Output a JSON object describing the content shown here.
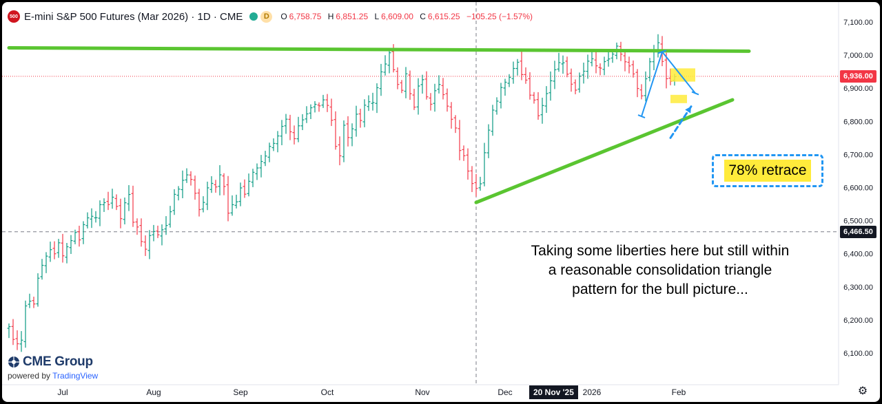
{
  "header": {
    "badge": "500",
    "symbol_title": "E-mini S&P 500 Futures (Mar 2026) · 1D · CME",
    "delay_badge": "D",
    "ohlc": [
      {
        "key": "O",
        "value": "6,758.75"
      },
      {
        "key": "H",
        "value": "6,851.25"
      },
      {
        "key": "L",
        "value": "6,609.00"
      },
      {
        "key": "C",
        "value": "6,615.25"
      },
      {
        "key": "",
        "value": "−105.25 (−1.57%)"
      }
    ]
  },
  "branding": {
    "name": "CME Group",
    "powered_prefix": "powered by",
    "powered_brand": "TradingView"
  },
  "annotations": {
    "note_lines": [
      "Taking some liberties here but still within",
      "a reasonable consolidation triangle",
      "pattern for the bull picture..."
    ],
    "retrace_label": "78% retrace"
  },
  "price_tags": {
    "last": {
      "value": 6936,
      "label": "6,936.00"
    },
    "crosshair": {
      "value": 6466.5,
      "label": "6,466.50"
    }
  },
  "crosshair_date": "20 Nov '25",
  "colors": {
    "up": "#089981",
    "down": "#f23645",
    "trend_line": "#5ac531",
    "measure": "#2196f3",
    "highlight": "#ffeb3b"
  },
  "icons": {
    "settings": "gear-icon"
  },
  "chart_data": {
    "type": "ohlc",
    "title": "E-mini S&P 500 Futures (Mar 2026) · 1D · CME",
    "ylim": [
      6050,
      7150
    ],
    "y_ticks": [
      6100,
      6200,
      6300,
      6400,
      6500,
      6600,
      6700,
      6800,
      6900,
      7000,
      7100
    ],
    "y_tick_labels": [
      "6,100.00",
      "6,200.00",
      "6,300.00",
      "6,400.00",
      "6,500.00",
      "6,600.00",
      "6,700.00",
      "6,800.00",
      "6,900.00",
      "7,000.00",
      "7,100.00"
    ],
    "x_months": [
      {
        "label": "Jul",
        "index": 13
      },
      {
        "label": "Aug",
        "index": 35
      },
      {
        "label": "Sep",
        "index": 56
      },
      {
        "label": "Oct",
        "index": 77
      },
      {
        "label": "Nov",
        "index": 100
      },
      {
        "label": "Dec",
        "index": 120
      },
      {
        "label": "2026",
        "index": 141
      },
      {
        "label": "Feb",
        "index": 162
      }
    ],
    "crosshair_index": 113,
    "grid": false,
    "segments": [
      {
        "start": 0,
        "end": 3,
        "points": [
          6180,
          6140,
          6135,
          6140
        ]
      },
      {
        "start": 3,
        "end": 4,
        "points": [
          6140,
          6175
        ]
      },
      {
        "start": 4,
        "end": 6,
        "points": [
          6250,
          6250
        ]
      },
      {
        "start": 6,
        "end": 12,
        "points": [
          6250,
          6330,
          6360,
          6390,
          6420,
          6400,
          6430
        ]
      },
      {
        "start": 12,
        "end": 29,
        "points": [
          6430,
          6400,
          6420,
          6440,
          6470,
          6450,
          6480,
          6500,
          6520,
          6510,
          6540,
          6560,
          6550,
          6570,
          6540,
          6510,
          6560,
          6580
        ]
      },
      {
        "start": 29,
        "end": 38,
        "points": [
          6580,
          6500,
          6480,
          6440,
          6420,
          6450,
          6470,
          6460,
          6480,
          6490
        ]
      },
      {
        "start": 38,
        "end": 62,
        "points": [
          6490,
          6520,
          6580,
          6600,
          6620,
          6640,
          6620,
          6580,
          6540,
          6560,
          6600,
          6620,
          6610,
          6640,
          6600,
          6520,
          6540,
          6560,
          6600,
          6580,
          6620,
          6640,
          6660,
          6680,
          6700
        ]
      },
      {
        "start": 62,
        "end": 76,
        "points": [
          6700,
          6720,
          6740,
          6760,
          6780,
          6800,
          6760,
          6740,
          6780,
          6800,
          6820,
          6840,
          6860,
          6850,
          6870
        ]
      },
      {
        "start": 76,
        "end": 85,
        "points": [
          6870,
          6850,
          6800,
          6720,
          6700,
          6780,
          6760,
          6780,
          6820,
          6810
        ]
      },
      {
        "start": 85,
        "end": 92,
        "points": [
          6810,
          6840,
          6860,
          6850,
          6900,
          6950,
          6980,
          7000
        ]
      },
      {
        "start": 92,
        "end": 100,
        "points": [
          7000,
          6960,
          6920,
          6900,
          6940,
          6880,
          6840,
          6900,
          6920
        ]
      },
      {
        "start": 100,
        "end": 108,
        "points": [
          6920,
          6880,
          6860,
          6900,
          6920,
          6880,
          6840,
          6800,
          6780
        ]
      },
      {
        "start": 108,
        "end": 114,
        "points": [
          6780,
          6720,
          6700,
          6650,
          6620,
          6600,
          6615
        ]
      },
      {
        "start": 114,
        "end": 120,
        "points": [
          6615,
          6700,
          6780,
          6840,
          6870,
          6900,
          6920
        ]
      },
      {
        "start": 120,
        "end": 134,
        "points": [
          6920,
          6940,
          6960,
          6980,
          6950,
          6920,
          6880,
          6860,
          6820,
          6840,
          6880,
          6920,
          6960,
          6980,
          6970
        ]
      },
      {
        "start": 134,
        "end": 144,
        "points": [
          6970,
          6950,
          6920,
          6900,
          6940,
          6960,
          6980,
          6990,
          6970,
          6960,
          6980
        ]
      },
      {
        "start": 144,
        "end": 153,
        "points": [
          6980,
          6990,
          7010,
          7020,
          7000,
          6980,
          6960,
          6940,
          6900,
          6870
        ]
      },
      {
        "start": 153,
        "end": 157,
        "points": [
          6870,
          6930,
          6980,
          7010,
          7030
        ]
      },
      {
        "start": 157,
        "end": 160,
        "points": [
          7030,
          6980,
          6920,
          6915
        ]
      },
      {
        "start": 160,
        "end": 161,
        "points": [
          6915,
          6936
        ]
      }
    ],
    "overlays": {
      "resistance_line": [
        [
          0,
          7022
        ],
        [
          179,
          7012
        ]
      ],
      "support_line": [
        [
          113,
          6555
        ],
        [
          175,
          6865
        ]
      ],
      "measure_up": [
        [
          153,
          6815
        ],
        [
          158,
          7010
        ]
      ],
      "measure_down": [
        [
          158,
          7010
        ],
        [
          166,
          6885
        ]
      ],
      "highlight_zone": {
        "from_index": 160,
        "to_index": 166,
        "low": 6920,
        "high": 6960
      },
      "highlight_zone_low": {
        "from_index": 160,
        "to_index": 164,
        "low": 6855,
        "high": 6880
      },
      "arrow_from": [
        160,
        6750
      ],
      "arrow_to": [
        165,
        6845
      ]
    }
  }
}
